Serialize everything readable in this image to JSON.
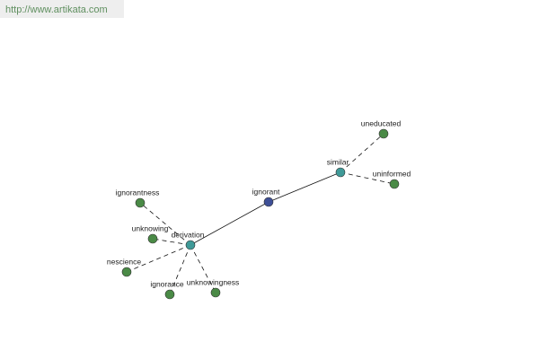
{
  "header": {
    "url": "http://www.artikata.com"
  },
  "nodes": [
    {
      "label": "ignorant"
    },
    {
      "label": "similar"
    },
    {
      "label": "derivation"
    },
    {
      "label": "uneducated"
    },
    {
      "label": "uninformed"
    },
    {
      "label": "ignorantness"
    },
    {
      "label": "unknowing"
    },
    {
      "label": "nescience"
    },
    {
      "label": "ignorance"
    },
    {
      "label": "unknowingness"
    }
  ]
}
